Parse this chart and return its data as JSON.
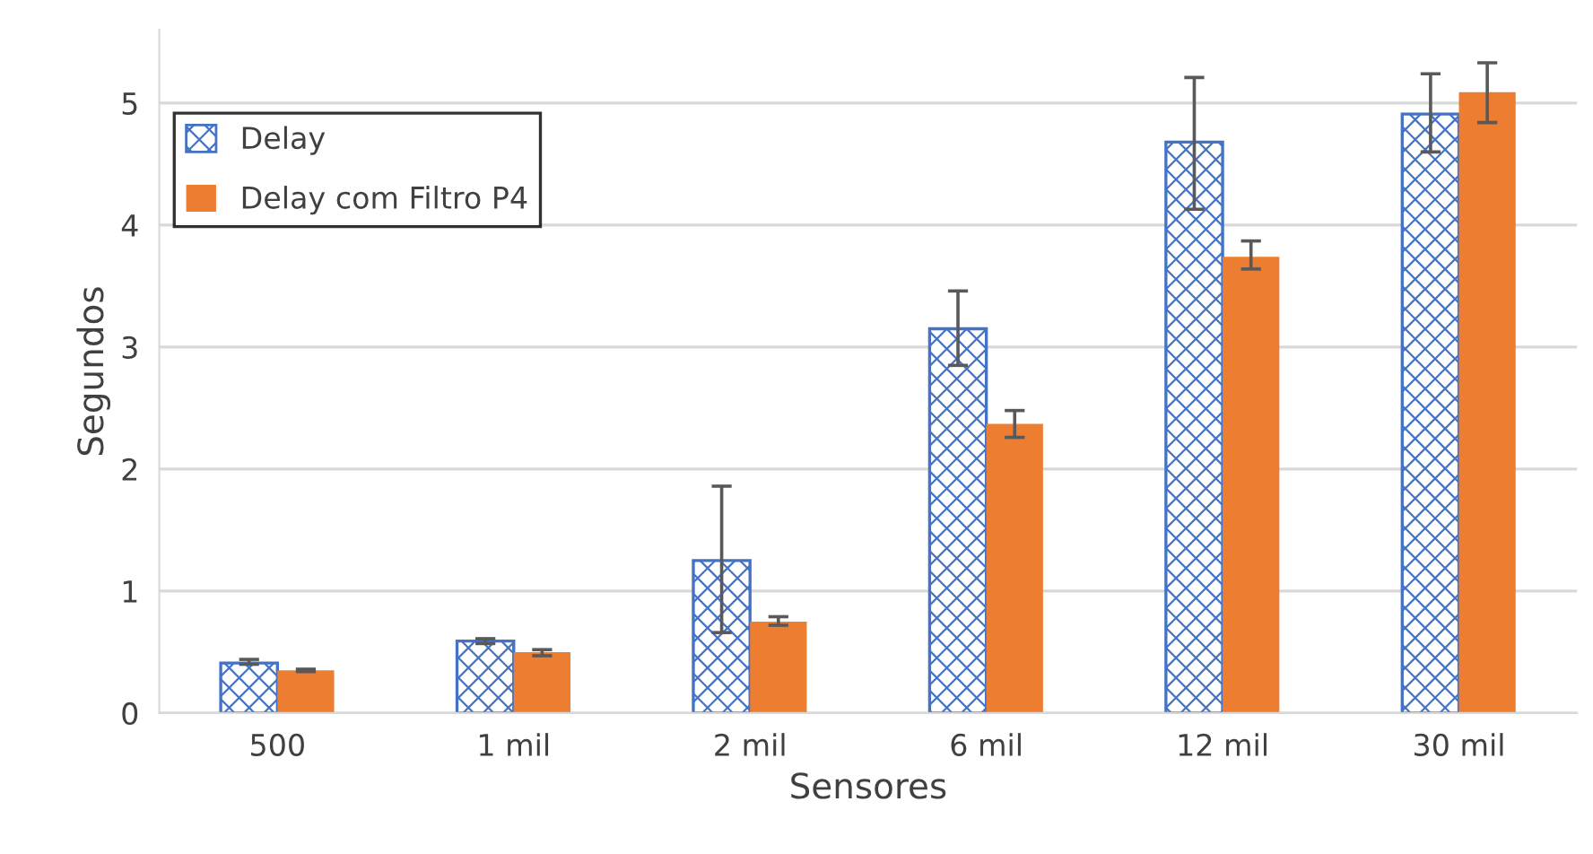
{
  "chart_data": {
    "type": "bar",
    "xlabel": "Sensores",
    "ylabel": "Segundos",
    "categories": [
      "500",
      "1 mil",
      "2 mil",
      "6 mil",
      "12 mil",
      "30 mil"
    ],
    "series": [
      {
        "name": "Delay",
        "color": "#4472c4",
        "values": [
          0.41,
          0.59,
          1.25,
          3.15,
          4.68,
          4.91
        ],
        "errors": [
          [
            0.4,
            0.44
          ],
          [
            0.57,
            0.61
          ],
          [
            0.66,
            1.86
          ],
          [
            2.85,
            3.46
          ],
          [
            4.13,
            5.21
          ],
          [
            4.6,
            5.24
          ]
        ]
      },
      {
        "name": "Delay com Filtro P4",
        "color": "#ed7d31",
        "values": [
          0.35,
          0.5,
          0.75,
          2.37,
          3.74,
          5.09
        ],
        "errors": [
          [
            0.34,
            0.36
          ],
          [
            0.47,
            0.52
          ],
          [
            0.72,
            0.79
          ],
          [
            2.26,
            2.48
          ],
          [
            3.64,
            3.87
          ],
          [
            4.84,
            5.33
          ]
        ]
      }
    ],
    "ylim": [
      0,
      5.6
    ],
    "yticks": [
      0,
      1,
      2,
      3,
      4,
      5
    ],
    "grid": "y",
    "legend": "top left"
  }
}
